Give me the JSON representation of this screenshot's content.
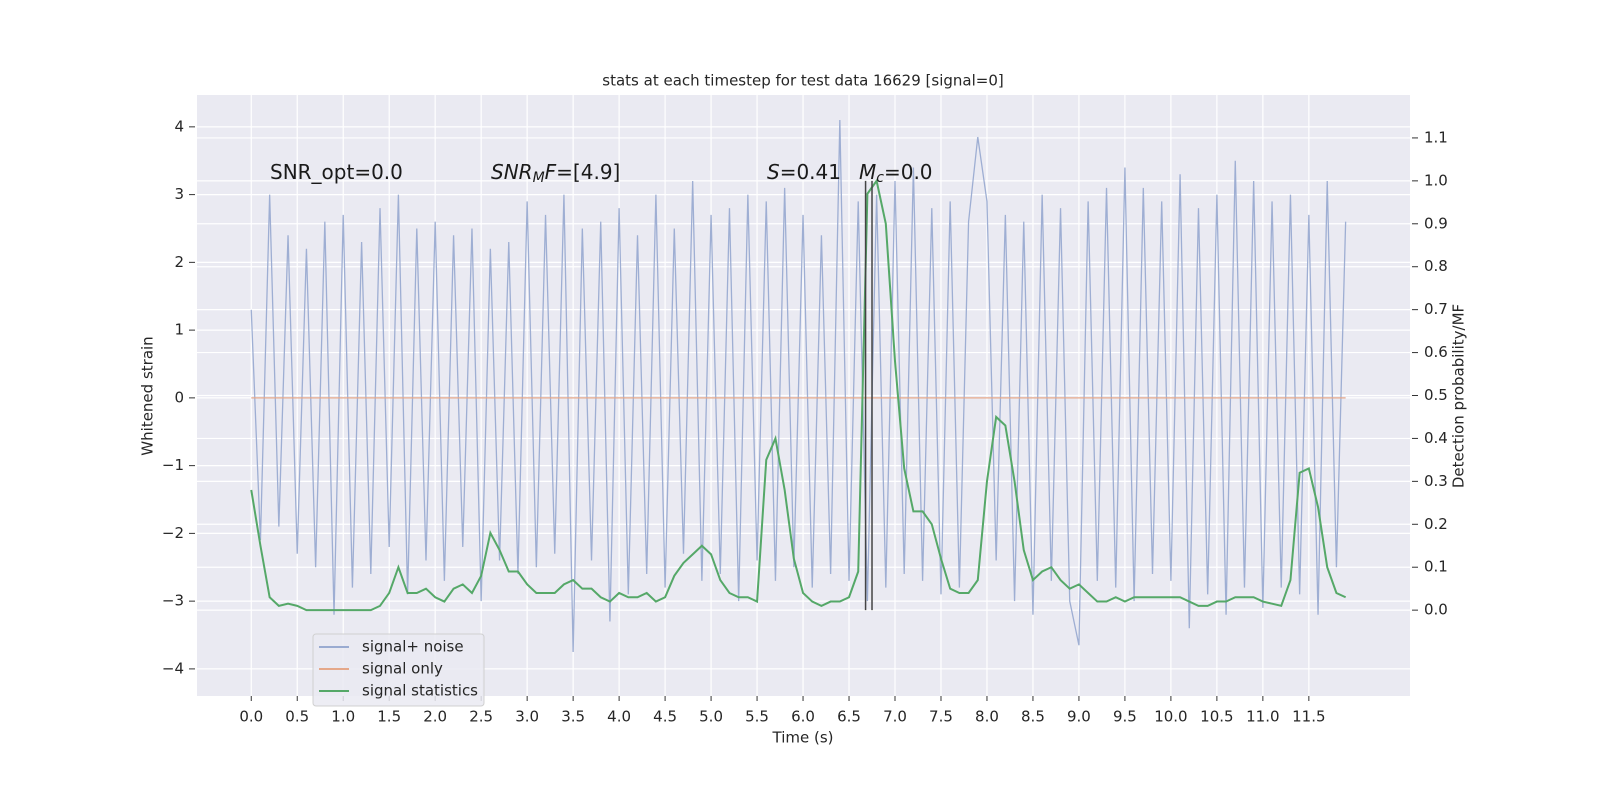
{
  "chart_data": {
    "type": "line",
    "title": "stats at each timestep for test data 16629 [signal=0]",
    "xlabel": "Time (s)",
    "ylabel": "Whitened strain",
    "y2label": "Detection probability/MF",
    "xlim": [
      -0.59,
      12.6
    ],
    "ylim": [
      -4.4,
      4.47
    ],
    "y2lim": [
      -0.2,
      1.2
    ],
    "xticks": [
      {
        "value": 0,
        "label": "0.0"
      },
      0.5,
      {
        "value": 1,
        "label": "1.0"
      },
      1.5,
      {
        "value": 2,
        "label": "2.0"
      },
      2.5,
      {
        "value": 3,
        "label": "3.0"
      },
      3.5,
      {
        "value": 4,
        "label": "4.0"
      },
      4.5,
      {
        "value": 5,
        "label": "5.0"
      },
      5.5,
      {
        "value": 6,
        "label": "6.0"
      },
      6.5,
      {
        "value": 7,
        "label": "7.0"
      },
      7.5,
      {
        "value": 8,
        "label": "8.0"
      },
      8.5,
      {
        "value": 9,
        "label": "9.0"
      },
      9.5,
      {
        "value": 10,
        "label": "10.0"
      },
      10.5,
      {
        "value": 11,
        "label": "11.0"
      },
      11.5
    ],
    "yticks": [
      {
        "value": -4,
        "label": "−4"
      },
      {
        "value": -3,
        "label": "−3"
      },
      {
        "value": -2,
        "label": "−2"
      },
      {
        "value": -1,
        "label": "−1"
      },
      0,
      1,
      2,
      3,
      4
    ],
    "y2ticks": [
      {
        "value": 0,
        "label": "0.0"
      },
      0.1,
      0.2,
      0.3,
      0.4,
      0.5,
      0.6,
      0.7,
      0.8,
      0.9,
      {
        "value": 1,
        "label": "1.0"
      },
      1.1
    ],
    "grid": true,
    "legend": "lower left",
    "x": [
      0,
      0.1,
      0.2,
      0.3,
      0.4,
      0.5,
      0.6,
      0.7,
      0.8,
      0.9,
      1,
      1.1,
      1.2,
      1.3,
      1.4,
      1.5,
      1.6,
      1.7,
      1.8,
      1.9,
      2,
      2.1,
      2.2,
      2.3,
      2.4,
      2.5,
      2.6,
      2.7,
      2.8,
      2.9,
      3,
      3.1,
      3.2,
      3.3,
      3.4,
      3.5,
      3.6,
      3.7,
      3.8,
      3.9,
      4,
      4.1,
      4.2,
      4.3,
      4.4,
      4.5,
      4.6,
      4.7,
      4.8,
      4.9,
      5,
      5.1,
      5.2,
      5.3,
      5.4,
      5.5,
      5.6,
      5.7,
      5.8,
      5.9,
      6,
      6.1,
      6.2,
      6.3,
      6.4,
      6.5,
      6.6,
      6.7,
      6.8,
      6.9,
      7,
      7.1,
      7.2,
      7.3,
      7.4,
      7.5,
      7.6,
      7.7,
      7.8,
      7.9,
      8,
      8.1,
      8.2,
      8.3,
      8.4,
      8.5,
      8.6,
      8.7,
      8.8,
      8.9,
      9,
      9.1,
      9.2,
      9.3,
      9.4,
      9.5,
      9.6,
      9.7,
      9.8,
      9.9,
      10,
      10.1,
      10.2,
      10.3,
      10.4,
      10.5,
      10.6,
      10.7,
      10.8,
      10.9,
      11,
      11.1,
      11.2,
      11.3,
      11.4,
      11.5,
      11.6,
      11.7,
      11.8,
      11.9
    ],
    "series": [
      {
        "name": "signal+ noise",
        "color": "#9aabd1",
        "values": [
          1.3,
          -2.1,
          3.0,
          -1.9,
          2.4,
          -2.3,
          2.2,
          -2.5,
          2.6,
          -3.2,
          2.7,
          -2.8,
          2.3,
          -2.6,
          2.8,
          -2.2,
          3.0,
          -2.9,
          2.5,
          -2.4,
          2.6,
          -2.7,
          2.4,
          -2.2,
          2.5,
          -3.0,
          2.2,
          -2.4,
          2.3,
          -2.6,
          2.9,
          -2.5,
          2.7,
          -2.3,
          3.0,
          -3.75,
          2.5,
          -2.4,
          2.6,
          -3.3,
          2.8,
          -2.9,
          2.4,
          -2.6,
          3.0,
          -2.8,
          2.5,
          -2.3,
          3.2,
          -2.7,
          2.7,
          -2.6,
          2.8,
          -3.0,
          3.0,
          -2.4,
          2.9,
          -2.7,
          3.1,
          -2.5,
          2.7,
          -2.8,
          2.4,
          -2.6,
          4.1,
          -2.7,
          2.9,
          -3.0,
          3.0,
          -2.8,
          3.2,
          -2.6,
          3.4,
          -2.7,
          2.8,
          -2.9,
          2.9,
          -2.8,
          2.6,
          3.85,
          2.9,
          -2.4,
          2.7,
          -3.0,
          2.6,
          -3.2,
          3.0,
          -2.7,
          2.8,
          -3.0,
          -3.65,
          2.9,
          -2.7,
          3.1,
          -2.8,
          3.4,
          -3.0,
          3.1,
          -2.6,
          2.9,
          -2.7,
          3.3,
          -3.4,
          2.8,
          -2.9,
          3.0,
          -3.2,
          3.5,
          -2.8,
          3.2,
          -3.1,
          2.9,
          -2.8,
          3.0,
          -2.9,
          2.7,
          -3.2,
          3.2,
          -2.5,
          2.6
        ]
      },
      {
        "name": "signal only",
        "color": "#e5a88a",
        "x": [
          0,
          11.9
        ],
        "values": [
          0,
          0
        ]
      },
      {
        "name": "signal statistics",
        "color": "#55a868",
        "axis": "y2",
        "values": [
          0.28,
          0.15,
          0.03,
          0.01,
          0.015,
          0.01,
          0,
          0,
          0,
          0,
          0,
          0,
          0,
          0,
          0.01,
          0.04,
          0.1,
          0.04,
          0.04,
          0.05,
          0.03,
          0.02,
          0.05,
          0.06,
          0.04,
          0.08,
          0.18,
          0.14,
          0.09,
          0.09,
          0.06,
          0.04,
          0.04,
          0.04,
          0.06,
          0.07,
          0.05,
          0.05,
          0.03,
          0.02,
          0.04,
          0.03,
          0.03,
          0.04,
          0.02,
          0.03,
          0.08,
          0.11,
          0.13,
          0.15,
          0.13,
          0.07,
          0.04,
          0.03,
          0.03,
          0.02,
          0.35,
          0.4,
          0.28,
          0.12,
          0.04,
          0.02,
          0.01,
          0.02,
          0.02,
          0.03,
          0.09,
          0.97,
          1.0,
          0.9,
          0.58,
          0.33,
          0.23,
          0.23,
          0.2,
          0.12,
          0.05,
          0.04,
          0.04,
          0.07,
          0.3,
          0.45,
          0.43,
          0.3,
          0.14,
          0.07,
          0.09,
          0.1,
          0.07,
          0.05,
          0.06,
          0.04,
          0.02,
          0.02,
          0.03,
          0.02,
          0.03,
          0.03,
          0.03,
          0.03,
          0.03,
          0.03,
          0.02,
          0.01,
          0.01,
          0.02,
          0.02,
          0.03,
          0.03,
          0.03,
          0.02,
          0.015,
          0.01,
          0.07,
          0.32,
          0.33,
          0.24,
          0.1,
          0.04,
          0.03
        ]
      }
    ],
    "vlines": {
      "x": [
        6.68,
        6.75
      ],
      "ymin": 0,
      "ymax": 1,
      "axis": "y2",
      "color": "#444444"
    },
    "annotations": [
      {
        "parts": [
          {
            "text": "SNR_opt=0.0"
          }
        ]
      },
      {
        "parts": [
          {
            "text": "SNR",
            "italic": true
          },
          {
            "text": "M",
            "italic": true,
            "sub": true
          },
          {
            "text": "F",
            "italic": true
          },
          {
            "text": "=[4.9]"
          }
        ]
      },
      {
        "parts": [
          {
            "text": "S",
            "italic": true
          },
          {
            "text": "=0.41"
          }
        ]
      },
      {
        "parts": [
          {
            "text": "M",
            "italic": true
          },
          {
            "text": "c",
            "italic": true,
            "sub": true
          },
          {
            "text": "=0.0"
          }
        ]
      }
    ]
  }
}
